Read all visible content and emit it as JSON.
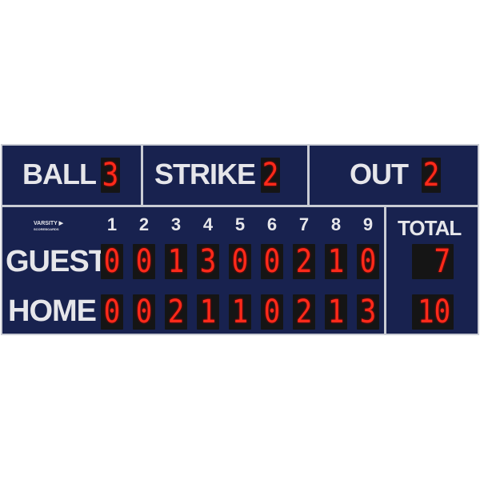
{
  "count": {
    "ball": {
      "label": "BALL",
      "value": "3"
    },
    "strike": {
      "label": "STRIKE",
      "value": "2"
    },
    "out": {
      "label": "OUT",
      "value": "2"
    }
  },
  "logo": {
    "name": "VARSITY",
    "sub": "SCOREBOARDS"
  },
  "innings": [
    "1",
    "2",
    "3",
    "4",
    "5",
    "6",
    "7",
    "8",
    "9"
  ],
  "total_label": "TOTAL",
  "teams": [
    {
      "name": "GUEST",
      "scores": [
        "0",
        "0",
        "1",
        "3",
        "0",
        "0",
        "2",
        "1",
        "0"
      ],
      "total": "7"
    },
    {
      "name": "HOME",
      "scores": [
        "0",
        "0",
        "2",
        "1",
        "1",
        "0",
        "2",
        "1",
        "3"
      ],
      "total": "10"
    }
  ],
  "colors": {
    "panel": "#18224f",
    "digit": "#ff2a1a",
    "text": "#e6e6ea"
  }
}
